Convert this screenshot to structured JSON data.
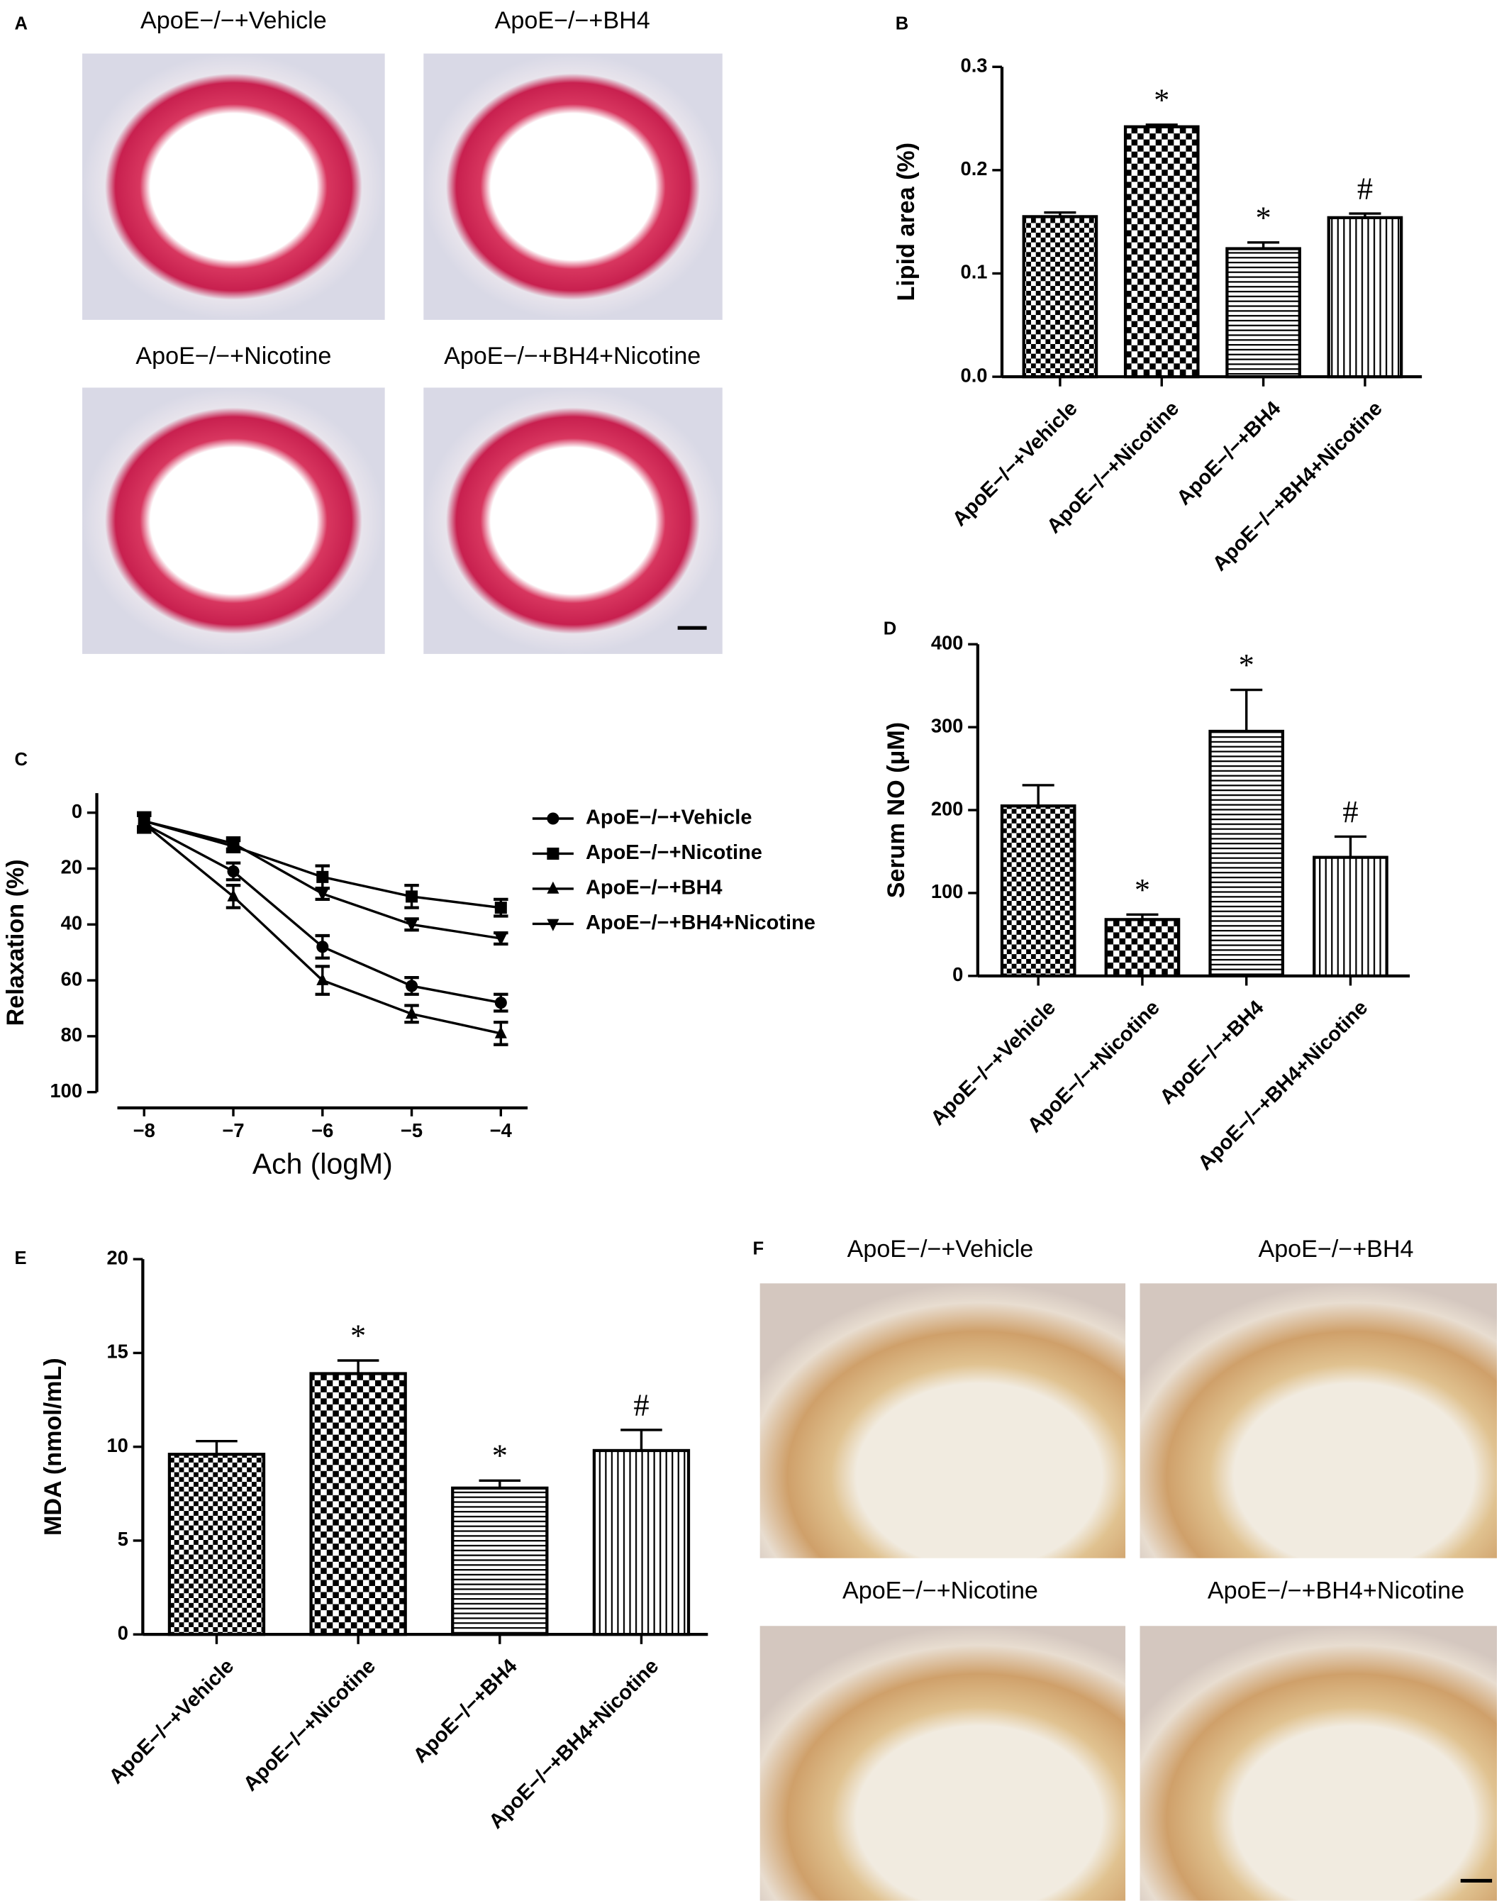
{
  "image_panels": [
    {
      "panel_label": "A",
      "captions": [
        "ApoE−/−+Vehicle",
        "ApoE−/−+BH4",
        "ApoE−/−+Nicotine",
        "ApoE−/−+BH4+Nicotine"
      ]
    },
    {
      "panel_label": "F",
      "captions": [
        "ApoE−/−+Vehicle",
        "ApoE−/−+BH4",
        "ApoE−/−+Nicotine",
        "ApoE−/−+BH4+Nicotine"
      ]
    }
  ],
  "chart_data": [
    {
      "type": "bar",
      "panel_label": "B",
      "y_label": "Lipid area (%)",
      "categories": [
        "ApoE−/−+Vehicle",
        "ApoE−/−+Nicotine",
        "ApoE−/−+BH4",
        "ApoE−/−+BH4+Nicotine"
      ],
      "values": [
        0.155,
        0.242,
        0.124,
        0.154
      ],
      "errors": [
        0.004,
        0.002,
        0.006,
        0.004
      ],
      "annotations": [
        null,
        "*",
        "*",
        "#"
      ],
      "patterns": [
        "checker",
        "checker-fine",
        "hlines",
        "vlines"
      ],
      "color": "#000000",
      "ylim": [
        0,
        0.3
      ],
      "yticks": [
        {
          "value": 0,
          "label": "0.0"
        },
        0.1,
        0.2,
        0.3
      ]
    },
    {
      "type": "line",
      "panel_label": "C",
      "x_label": "Ach (logM)",
      "y_label": "Relaxation (%)",
      "x": [
        -8,
        -7,
        -6,
        -5,
        -4
      ],
      "xlim": [
        -8.3,
        -3.7
      ],
      "xticks": [
        {
          "value": -8,
          "label": "−8"
        },
        {
          "value": -7,
          "label": "−7"
        },
        {
          "value": -6,
          "label": "−6"
        },
        {
          "value": -5,
          "label": "−5"
        },
        {
          "value": -4,
          "label": "−4"
        }
      ],
      "ylim": [
        100,
        -7
      ],
      "yticks": [
        0,
        20,
        40,
        60,
        80,
        100
      ],
      "series": [
        {
          "name": "ApoE−/−+Vehicle",
          "color": "#000000",
          "marker": "circle",
          "values": [
            4,
            21,
            48,
            62,
            68
          ],
          "errors": [
            3,
            3,
            4,
            3,
            3
          ]
        },
        {
          "name": "ApoE−/−+Nicotine",
          "color": "#000000",
          "marker": "square",
          "values": [
            3,
            12,
            23,
            30,
            34
          ],
          "errors": [
            3,
            2,
            4,
            4,
            3
          ]
        },
        {
          "name": "ApoE−/−+BH4",
          "color": "#000000",
          "marker": "triangle-up",
          "values": [
            4,
            30,
            60,
            72,
            79
          ],
          "errors": [
            3,
            4,
            5,
            3,
            4
          ]
        },
        {
          "name": "ApoE−/−+BH4+Nicotine",
          "color": "#000000",
          "marker": "triangle-down",
          "values": [
            3,
            11,
            29,
            40,
            45
          ],
          "errors": [
            2,
            2,
            2,
            2,
            2
          ]
        }
      ]
    },
    {
      "type": "bar",
      "panel_label": "D",
      "y_label": "Serum NO (μM)",
      "categories": [
        "ApoE−/−+Vehicle",
        "ApoE−/−+Nicotine",
        "ApoE−/−+BH4",
        "ApoE−/−+BH4+Nicotine"
      ],
      "values": [
        205,
        68,
        295,
        143
      ],
      "errors": [
        25,
        6,
        50,
        25
      ],
      "annotations": [
        null,
        "*",
        "*",
        "#"
      ],
      "patterns": [
        "checker",
        "checker-fine",
        "hlines",
        "vlines"
      ],
      "color": "#000000",
      "ylim": [
        0,
        400
      ],
      "yticks": [
        0,
        100,
        200,
        300,
        400
      ]
    },
    {
      "type": "bar",
      "panel_label": "E",
      "y_label": "MDA (nmol/mL)",
      "categories": [
        "ApoE−/−+Vehicle",
        "ApoE−/−+Nicotine",
        "ApoE−/−+BH4",
        "ApoE−/−+BH4+Nicotine"
      ],
      "values": [
        9.6,
        13.9,
        7.8,
        9.8
      ],
      "errors": [
        0.7,
        0.7,
        0.4,
        1.1
      ],
      "annotations": [
        null,
        "*",
        "*",
        "#"
      ],
      "patterns": [
        "checker",
        "checker-fine",
        "hlines",
        "vlines"
      ],
      "color": "#000000",
      "ylim": [
        0,
        20
      ],
      "yticks": [
        0,
        5,
        10,
        15,
        20
      ]
    }
  ]
}
